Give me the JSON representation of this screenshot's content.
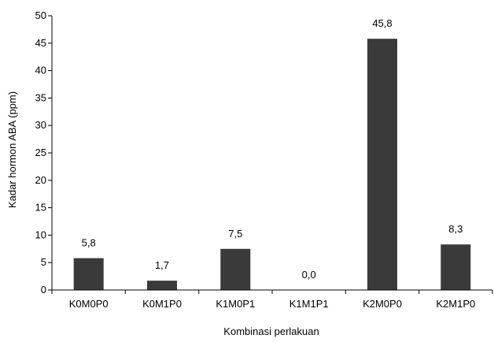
{
  "chart_data": {
    "type": "bar",
    "categories": [
      "K0M0P0",
      "K0M1P0",
      "K1M0P1",
      "K1M1P1",
      "K2M0P0",
      "K2M1P0"
    ],
    "values": [
      5.8,
      1.7,
      7.5,
      0.0,
      45.8,
      8.3
    ],
    "data_labels": [
      "5,8",
      "1,7",
      "7,5",
      "0,0",
      "45,8",
      "8,3"
    ],
    "xlabel": "Kombinasi perlakuan",
    "ylabel": "Kadar hormon ABA (ppm)",
    "ylim": [
      0,
      50
    ],
    "yticks": [
      0,
      5,
      10,
      15,
      20,
      25,
      30,
      35,
      40,
      45,
      50
    ],
    "ytick_labels": [
      "0",
      "5",
      "10",
      "15",
      "20",
      "25",
      "30",
      "35",
      "40",
      "45",
      "50"
    ],
    "grid": false,
    "legend": "none",
    "bar_color": "#3a3a3a"
  }
}
